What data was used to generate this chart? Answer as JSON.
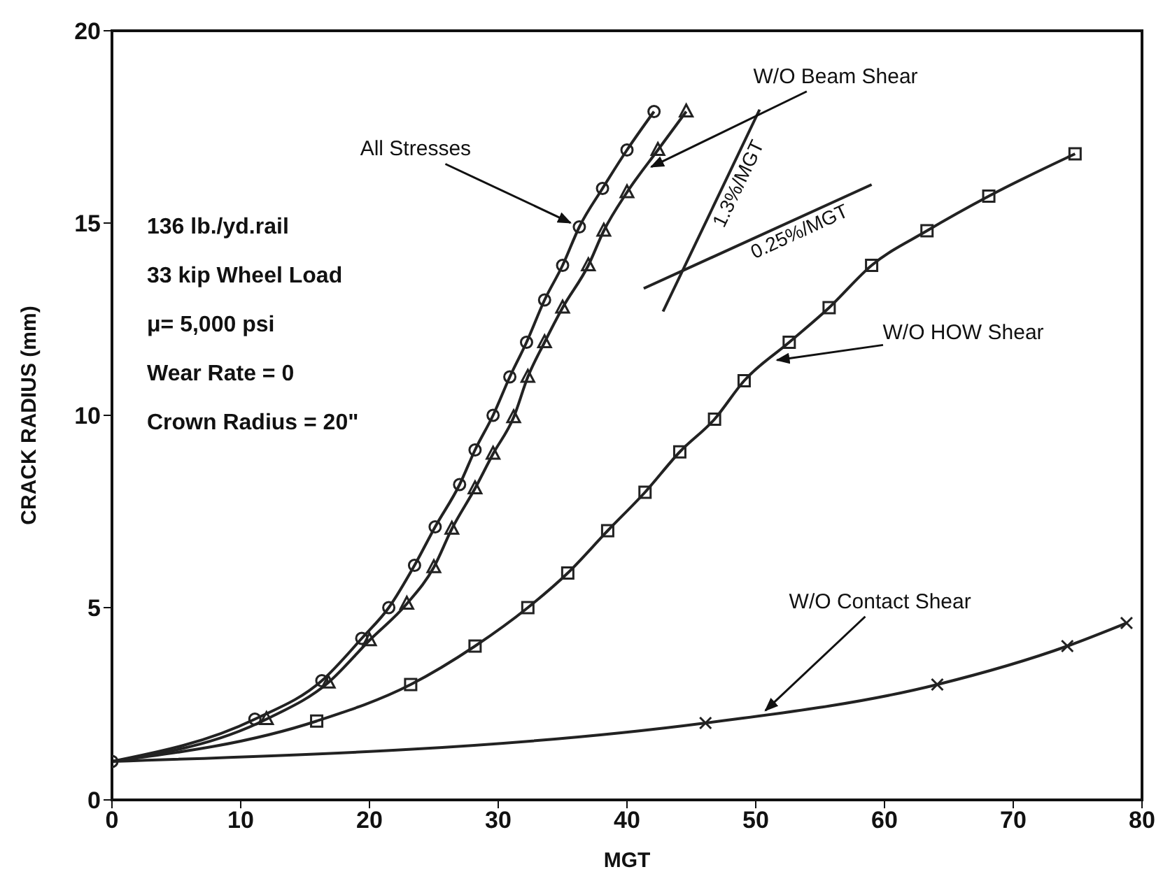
{
  "chart_data": {
    "type": "line",
    "xlabel": "MGT",
    "ylabel": "CRACK RADIUS (mm)",
    "xlim": [
      0,
      80
    ],
    "ylim": [
      0,
      20
    ],
    "xticks": [
      0,
      10,
      20,
      30,
      40,
      50,
      60,
      70,
      80
    ],
    "yticks": [
      0,
      5,
      10,
      15,
      20
    ],
    "series": [
      {
        "color": "#222222",
        "marker": "circle",
        "x": [
          0,
          11.1,
          16.3,
          19.4,
          21.5,
          23.5,
          25.1,
          27,
          28.2,
          29.6,
          30.9,
          32.2,
          33.6,
          35,
          36.3,
          38.1,
          40,
          42.1
        ],
        "values": [
          1,
          2.1,
          3.1,
          4.2,
          5,
          6.1,
          7.1,
          8.2,
          9.1,
          10,
          11,
          11.9,
          13,
          13.9,
          14.9,
          15.9,
          16.9,
          17.9
        ]
      },
      {
        "color": "#222222",
        "marker": "triangle",
        "x": [
          0,
          12,
          16.8,
          20,
          22.9,
          25,
          26.4,
          28.2,
          29.6,
          31.2,
          32.3,
          33.6,
          35,
          37,
          38.2,
          40,
          42.4,
          44.6
        ],
        "values": [
          1,
          2.1,
          3.05,
          4.15,
          5.1,
          6.05,
          7.05,
          8.1,
          9,
          9.95,
          11,
          11.9,
          12.8,
          13.9,
          14.8,
          15.8,
          16.9,
          17.9
        ]
      },
      {
        "color": "#222222",
        "marker": "square",
        "x": [
          0,
          15.9,
          23.2,
          28.2,
          32.3,
          35.4,
          38.5,
          41.4,
          44.1,
          46.8,
          49.1,
          52.6,
          55.7,
          59,
          63.3,
          68.1,
          74.8
        ],
        "values": [
          1,
          2.05,
          3,
          4,
          5,
          5.9,
          7,
          8,
          9.05,
          9.9,
          10.9,
          11.9,
          12.8,
          13.9,
          14.8,
          15.7,
          16.8
        ]
      },
      {
        "color": "#222222",
        "marker": "cross",
        "x": [
          0,
          46.1,
          64.1,
          74.2,
          78.8
        ],
        "values": [
          1,
          2,
          3,
          4,
          4.6
        ]
      },
      {
        "name": "1.3%/MGT",
        "color": "#222222",
        "marker": "none",
        "x": [
          42.8,
          50.3
        ],
        "values": [
          12.7,
          17.95
        ]
      },
      {
        "name": "0.25%/MGT",
        "color": "#222222",
        "marker": "none",
        "x": [
          41.3,
          59
        ],
        "values": [
          13.3,
          16
        ]
      }
    ],
    "annotations": [
      "136 lb./yd.rail",
      "33 kip Wheel Load",
      "μ= 5,000 psi",
      "Wear Rate = 0",
      "Crown Radius = 20\"",
      {
        "text": "All Stresses",
        "x": 36.3,
        "y": 14.9
      },
      {
        "text": "W/O Beam Shear",
        "x": 41.2,
        "y": 16.35
      },
      {
        "text": "W/O HOW Shear",
        "x": 50.9,
        "y": 11.4
      },
      {
        "text": "W/O Contact Shear",
        "x": 50.2,
        "y": 2.15
      }
    ]
  }
}
